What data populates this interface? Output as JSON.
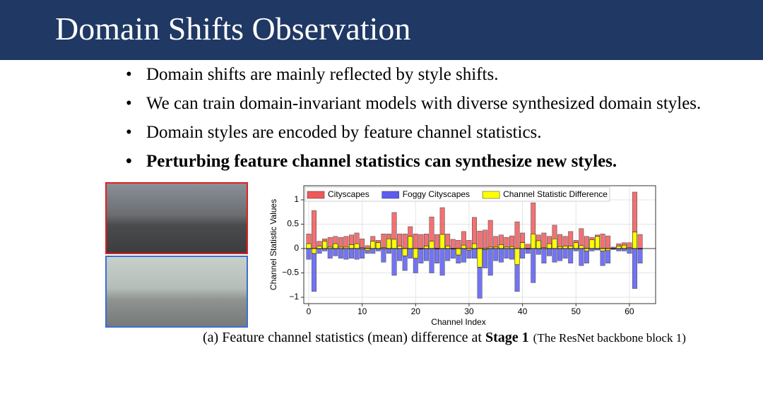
{
  "slide": {
    "title": "Domain Shifts Observation",
    "bullets": [
      "Domain shifts are mainly reflected by style shifts.",
      "We can train domain-invariant models with diverse synthesized domain styles.",
      "Domain styles are encoded by feature channel statistics.",
      "Perturbing feature channel statistics can synthesize new styles."
    ]
  },
  "caption": {
    "text": "(a) Feature channel statistics (mean) difference at ",
    "bold": "Stage 1",
    "note": "(The ResNet backbone block 1)"
  },
  "chart_data": {
    "type": "bar",
    "xlabel": "Channel Index",
    "ylabel": "Channel Statistic Values",
    "x": [
      0,
      1,
      2,
      3,
      4,
      5,
      6,
      7,
      8,
      9,
      10,
      11,
      12,
      13,
      14,
      15,
      16,
      17,
      18,
      19,
      20,
      21,
      22,
      23,
      24,
      25,
      26,
      27,
      28,
      29,
      30,
      31,
      32,
      33,
      34,
      35,
      36,
      37,
      38,
      39,
      40,
      41,
      42,
      43,
      44,
      45,
      46,
      47,
      48,
      49,
      50,
      51,
      52,
      53,
      54,
      55,
      56,
      57,
      58,
      59,
      60,
      61,
      62
    ],
    "series": [
      {
        "name": "Cityscapes",
        "color": "#f0585a",
        "values": [
          0.3,
          0.78,
          0.15,
          0.2,
          0.23,
          0.25,
          0.23,
          0.25,
          0.28,
          0.32,
          0.2,
          0.06,
          0.25,
          0.17,
          0.3,
          0.3,
          0.74,
          0.3,
          0.3,
          0.45,
          0.3,
          0.29,
          0.3,
          0.65,
          0.29,
          0.84,
          0.3,
          0.19,
          0.17,
          0.35,
          0.17,
          0.64,
          0.36,
          0.38,
          0.58,
          0.25,
          0.28,
          0.23,
          0.26,
          0.55,
          0.32,
          0.09,
          0.94,
          0.28,
          0.32,
          0.25,
          0.48,
          0.29,
          0.25,
          0.35,
          0.17,
          0.41,
          0.25,
          0.23,
          0.28,
          0.3,
          0.26,
          0.03,
          0.1,
          0.12,
          0.12,
          1.16,
          0.29
        ]
      },
      {
        "name": "Foggy Cityscapes",
        "color": "#5a5cf2",
        "values": [
          -0.22,
          -0.88,
          -0.1,
          -0.05,
          -0.2,
          -0.15,
          -0.2,
          -0.22,
          -0.2,
          -0.22,
          -0.2,
          -0.1,
          -0.1,
          -0.05,
          -0.28,
          -0.1,
          -0.55,
          -0.25,
          -0.45,
          -0.2,
          -0.5,
          -0.3,
          -0.25,
          -0.5,
          -0.3,
          -0.55,
          -0.25,
          -0.2,
          -0.3,
          -0.28,
          -0.2,
          -0.2,
          -1.02,
          -0.4,
          -0.55,
          -0.25,
          -0.28,
          -0.2,
          -0.22,
          -0.88,
          -0.2,
          -0.1,
          -0.7,
          -0.12,
          -0.3,
          -0.15,
          -0.28,
          -0.25,
          -0.2,
          -0.3,
          -0.05,
          -0.35,
          -0.3,
          -0.05,
          -0.03,
          -0.35,
          -0.3,
          -0.02,
          -0.05,
          -0.05,
          -0.1,
          -0.82,
          -0.3
        ]
      },
      {
        "name": "Channel Statistic Difference",
        "color": "#ffff00",
        "values": [
          0.1,
          -0.1,
          0.05,
          0.15,
          0.03,
          0.1,
          0.03,
          0.03,
          0.08,
          0.1,
          0.02,
          -0.04,
          0.15,
          0.12,
          0.02,
          0.2,
          0.19,
          0.05,
          -0.15,
          0.25,
          -0.2,
          -0.01,
          0.05,
          0.15,
          -0.01,
          0.29,
          0.05,
          -0.01,
          -0.13,
          0.07,
          -0.03,
          0.1,
          -0.38,
          -0.02,
          0.03,
          0.03,
          0.08,
          0.03,
          0.04,
          -0.33,
          0.12,
          -0.01,
          0.3,
          0.16,
          0.02,
          0.1,
          0.2,
          0.04,
          0.05,
          0.05,
          0.12,
          0.06,
          -0.05,
          0.18,
          0.25,
          -0.05,
          -0.04,
          0.01,
          0.05,
          0.07,
          0.02,
          0.34,
          -0.01
        ]
      }
    ],
    "xlim": [
      -0.92,
      64.9
    ],
    "xticks": [
      0,
      10,
      20,
      30,
      40,
      50,
      60
    ],
    "ylim": [
      -1.13,
      1.29
    ],
    "yticks": [
      {
        "value": -1,
        "label": "−1"
      },
      {
        "value": -0.5,
        "label": "−0.5"
      },
      0,
      0.5,
      1
    ],
    "grid": true,
    "legend": "upper center"
  }
}
